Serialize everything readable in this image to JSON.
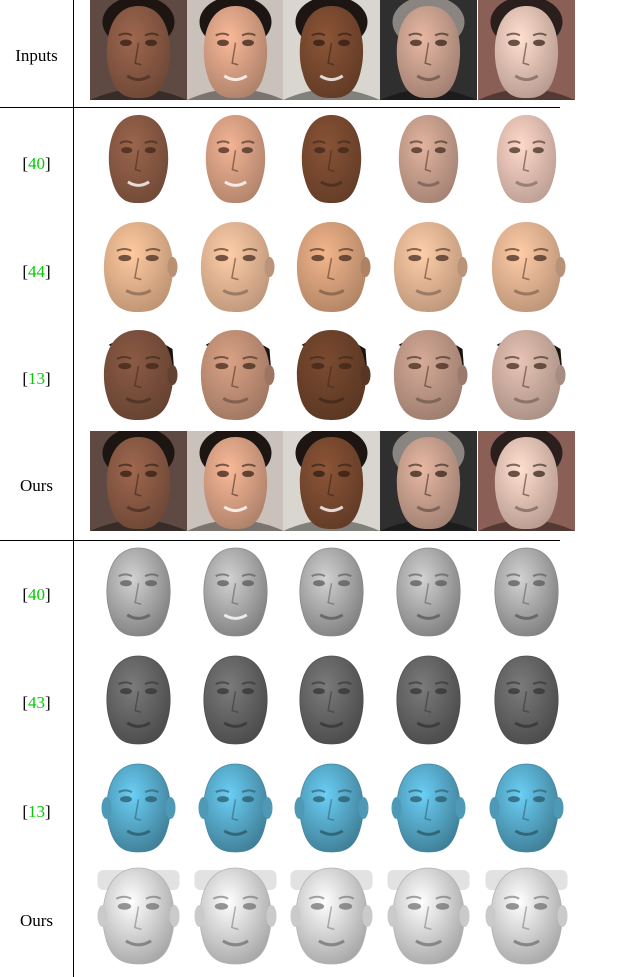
{
  "rows": [
    {
      "label": "Inputs",
      "kind": "photo"
    },
    {
      "label_prefix": "[",
      "ref": "40",
      "label_suffix": "]",
      "kind": "texface"
    },
    {
      "label_prefix": "[",
      "ref": "44",
      "label_suffix": "]",
      "kind": "texface"
    },
    {
      "label_prefix": "[",
      "ref": "13",
      "label_suffix": "]",
      "kind": "texface"
    },
    {
      "label": "Ours",
      "kind": "photo"
    },
    {
      "label_prefix": "[",
      "ref": "40",
      "label_suffix": "]",
      "kind": "shape"
    },
    {
      "label_prefix": "[",
      "ref": "43",
      "label_suffix": "]",
      "kind": "shape"
    },
    {
      "label_prefix": "[",
      "ref": "13",
      "label_suffix": "]",
      "kind": "shape"
    },
    {
      "label": "Ours",
      "kind": "shape"
    }
  ],
  "colors": {
    "citation": "#00cc00",
    "skin_tones": [
      "#8a5a44",
      "#d9a184",
      "#7a4a30",
      "#c9a08e",
      "#e6c2b4"
    ],
    "backgrounds": [
      "#5e4a42",
      "#c9c1ba",
      "#d9d6cf",
      "#2f2f2f",
      "#8a5f55"
    ],
    "shape_gray_light": "#b7b7b7",
    "shape_gray_dark": "#6b6b6b",
    "shape_blue": "#5cb4d6",
    "shape_white": "#eeeeee"
  }
}
